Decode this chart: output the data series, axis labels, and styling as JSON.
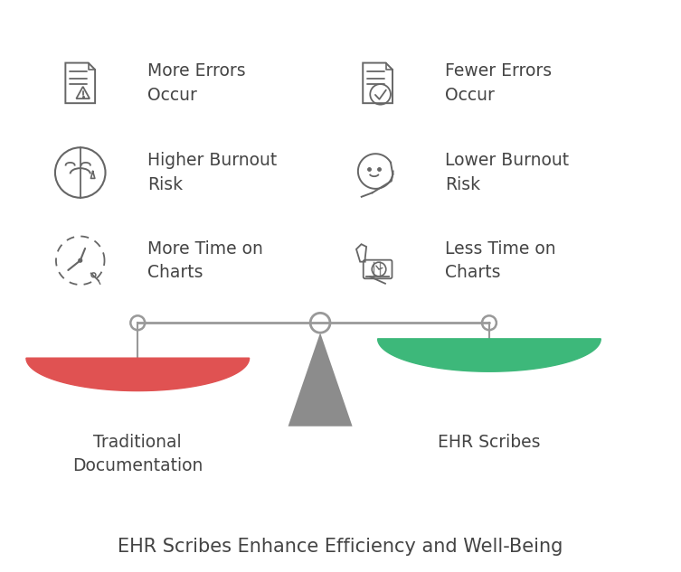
{
  "title": "EHR Scribes Enhance Efficiency and Well-Being",
  "title_fontsize": 15,
  "left_label": "Traditional\nDocumentation",
  "right_label": "EHR Scribes",
  "left_items": [
    {
      "text": "More Errors\nOccur"
    },
    {
      "text": "Higher Burnout\nRisk"
    },
    {
      "text": "More Time on\nCharts"
    }
  ],
  "right_items": [
    {
      "text": "Fewer Errors\nOccur"
    },
    {
      "text": "Lower Burnout\nRisk"
    },
    {
      "text": "Less Time on\nCharts"
    }
  ],
  "left_pan_color": "#E05252",
  "right_pan_color": "#3DB87A",
  "scale_color": "#999999",
  "text_color": "#444444",
  "icon_color": "#666666",
  "background_color": "#ffffff"
}
